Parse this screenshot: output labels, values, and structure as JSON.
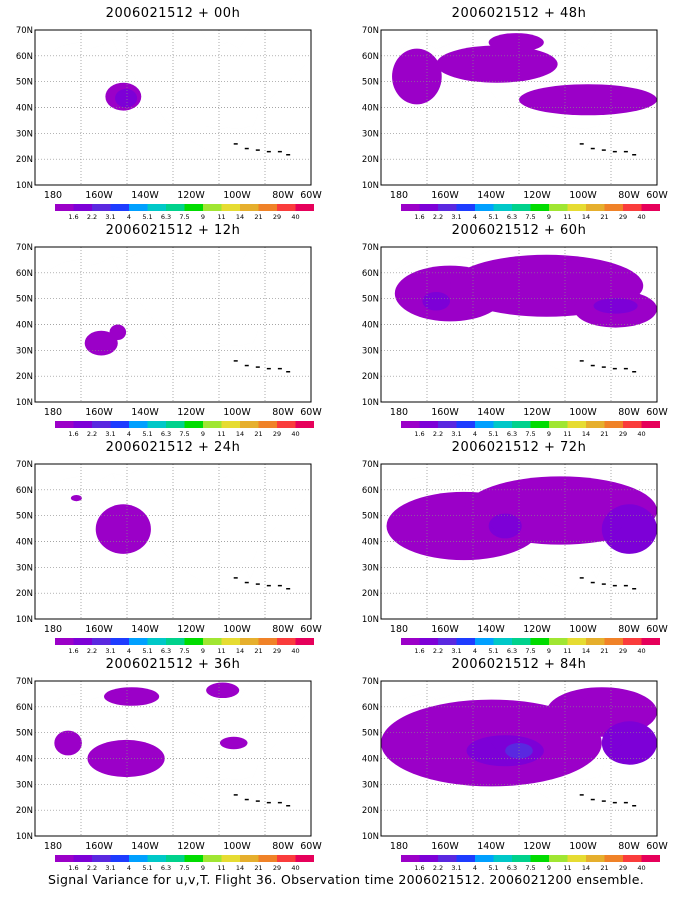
{
  "panels": [
    {
      "title": "2006021512 + 00h"
    },
    {
      "title": "2006021512 + 48h"
    },
    {
      "title": "2006021512 + 12h"
    },
    {
      "title": "2006021512 + 60h"
    },
    {
      "title": "2006021512 + 24h"
    },
    {
      "title": "2006021512 + 72h"
    },
    {
      "title": "2006021512 + 36h"
    },
    {
      "title": "2006021512 + 84h"
    }
  ],
  "axes": {
    "lat_labels": [
      "70N",
      "60N",
      "50N",
      "40N",
      "30N",
      "20N",
      "10N"
    ],
    "lon_labels": [
      "180",
      "160W",
      "140W",
      "120W",
      "100W",
      "80W",
      "60W"
    ]
  },
  "colorbar": {
    "labels": [
      "1.6",
      "2.2",
      "3.1",
      "4",
      "5.1",
      "6.3",
      "7.5",
      "9",
      "11",
      "14",
      "21",
      "29",
      "40"
    ],
    "colors": [
      "#9b00c8",
      "#7d00d7",
      "#5a28e0",
      "#1e3cff",
      "#00a0ff",
      "#00c8c8",
      "#00d28c",
      "#00dc00",
      "#a0e632",
      "#e6dc32",
      "#e6af2d",
      "#f08228",
      "#fa3c3c",
      "#e6005a"
    ]
  },
  "footer": "Signal Variance for u,v,T. Flight 36. Observation time 2006021512. 2006021200 ensemble."
}
